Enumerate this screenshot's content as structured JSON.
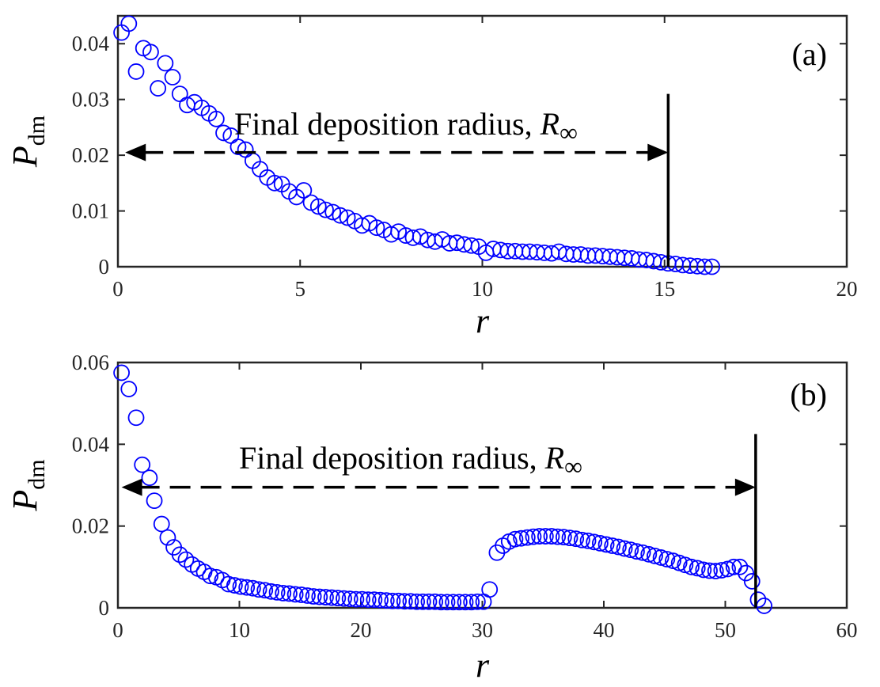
{
  "chart_data": [
    {
      "type": "scatter",
      "panel_label": "(a)",
      "xlabel": "r",
      "ylabel": "P",
      "ylabel_subscript": "dm",
      "xlim": [
        0,
        20
      ],
      "ylim": [
        0,
        0.045
      ],
      "xticks": [
        0,
        5,
        10,
        15,
        20
      ],
      "xtick_labels": [
        "0",
        "5",
        "10",
        "15",
        "20"
      ],
      "yticks": [
        0,
        0.01,
        0.02,
        0.03,
        0.04
      ],
      "ytick_labels": [
        "0",
        "0.01",
        "0.02",
        "0.03",
        "0.04"
      ],
      "marker": "open-circle",
      "color": "#0000ff",
      "annotation": {
        "text": "Final deposition radius, ",
        "symbol": "R",
        "symbol_subscript": "∞",
        "arrow_y": 0.0205,
        "arrow_from_x": 0.2,
        "arrow_to_x": 15.1,
        "vertical_line_x": 15.1,
        "vertical_line_y": [
          0,
          0.031
        ]
      },
      "series": [
        {
          "x": [
            0.1,
            0.3,
            0.5,
            0.7,
            0.9,
            1.1,
            1.3,
            1.5,
            1.7,
            1.9,
            2.1,
            2.3,
            2.5,
            2.7,
            2.9,
            3.1,
            3.3,
            3.5,
            3.7,
            3.9,
            4.1,
            4.3,
            4.5,
            4.7,
            4.9,
            5.1,
            5.3,
            5.5,
            5.7,
            5.9,
            6.1,
            6.3,
            6.5,
            6.7,
            6.9,
            7.1,
            7.3,
            7.5,
            7.7,
            7.9,
            8.1,
            8.3,
            8.5,
            8.7,
            8.9,
            9.1,
            9.3,
            9.5,
            9.7,
            9.9,
            10.1,
            10.3,
            10.5,
            10.7,
            10.9,
            11.1,
            11.3,
            11.5,
            11.7,
            11.9,
            12.1,
            12.3,
            12.5,
            12.7,
            12.9,
            13.1,
            13.3,
            13.5,
            13.7,
            13.9,
            14.1,
            14.3,
            14.5,
            14.7,
            14.9,
            15.1,
            15.3,
            15.5,
            15.7,
            15.9,
            16.1,
            16.3
          ],
          "y": [
            0.042,
            0.0436,
            0.035,
            0.0392,
            0.0385,
            0.032,
            0.0365,
            0.034,
            0.031,
            0.029,
            0.0295,
            0.0285,
            0.0275,
            0.0265,
            0.024,
            0.0235,
            0.0215,
            0.021,
            0.019,
            0.0175,
            0.016,
            0.015,
            0.0148,
            0.0135,
            0.0125,
            0.0137,
            0.0115,
            0.0108,
            0.0102,
            0.0098,
            0.0092,
            0.0088,
            0.0082,
            0.0074,
            0.0078,
            0.007,
            0.0066,
            0.0058,
            0.0063,
            0.0056,
            0.0052,
            0.0054,
            0.0048,
            0.0045,
            0.0049,
            0.0042,
            0.0043,
            0.004,
            0.0038,
            0.0036,
            0.0025,
            0.0032,
            0.003,
            0.0028,
            0.0028,
            0.0027,
            0.0027,
            0.0026,
            0.0025,
            0.0024,
            0.0027,
            0.0023,
            0.0022,
            0.0022,
            0.002,
            0.002,
            0.0019,
            0.0018,
            0.0017,
            0.0016,
            0.0015,
            0.0013,
            0.0012,
            0.001,
            0.0008,
            0.0006,
            0.0005,
            0.0003,
            0.0002,
            0.0001,
            0.0,
            0.0
          ]
        }
      ]
    },
    {
      "type": "scatter",
      "panel_label": "(b)",
      "xlabel": "r",
      "ylabel": "P",
      "ylabel_subscript": "dm",
      "xlim": [
        0,
        60
      ],
      "ylim": [
        0,
        0.06
      ],
      "xticks": [
        0,
        10,
        20,
        30,
        40,
        50,
        60
      ],
      "xtick_labels": [
        "0",
        "10",
        "20",
        "30",
        "40",
        "50",
        "60"
      ],
      "yticks": [
        0,
        0.02,
        0.04,
        0.06
      ],
      "ytick_labels": [
        "0",
        "0.02",
        "0.04",
        "0.06"
      ],
      "marker": "open-circle",
      "color": "#0000ff",
      "annotation": {
        "text": "Final deposition radius, ",
        "symbol": "R",
        "symbol_subscript": "∞",
        "arrow_y": 0.0295,
        "arrow_from_x": 0.3,
        "arrow_to_x": 52.5,
        "vertical_line_x": 52.5,
        "vertical_line_y": [
          0,
          0.0425
        ]
      },
      "series": [
        {
          "x": [
            0.3,
            0.9,
            1.5,
            2.0,
            2.6,
            3.0,
            3.6,
            4.1,
            4.6,
            5.1,
            5.6,
            6.1,
            6.6,
            7.1,
            7.6,
            8.1,
            8.6,
            9.1,
            9.6,
            10.1,
            10.6,
            11.1,
            11.6,
            12.1,
            12.6,
            13.1,
            13.6,
            14.1,
            14.6,
            15.1,
            15.6,
            16.1,
            16.6,
            17.1,
            17.6,
            18.1,
            18.6,
            19.1,
            19.6,
            20.1,
            20.6,
            21.1,
            21.6,
            22.1,
            22.6,
            23.1,
            23.6,
            24.1,
            24.6,
            25.1,
            25.6,
            26.1,
            26.6,
            27.1,
            27.6,
            28.1,
            28.6,
            29.1,
            29.6,
            30.1,
            30.6,
            31.2,
            31.7,
            32.2,
            32.7,
            33.2,
            33.7,
            34.2,
            34.7,
            35.2,
            35.7,
            36.2,
            36.7,
            37.2,
            37.7,
            38.2,
            38.7,
            39.2,
            39.7,
            40.2,
            40.7,
            41.2,
            41.7,
            42.2,
            42.7,
            43.2,
            43.7,
            44.2,
            44.7,
            45.2,
            45.7,
            46.2,
            46.7,
            47.2,
            47.7,
            48.2,
            48.7,
            49.2,
            49.7,
            50.2,
            50.7,
            51.2,
            51.7,
            52.2,
            52.7,
            53.2
          ],
          "y": [
            0.0575,
            0.0535,
            0.0465,
            0.035,
            0.0318,
            0.0262,
            0.0205,
            0.0172,
            0.0148,
            0.013,
            0.0118,
            0.0106,
            0.0096,
            0.0088,
            0.0078,
            0.0075,
            0.0068,
            0.0058,
            0.0055,
            0.0052,
            0.005,
            0.0048,
            0.0045,
            0.0043,
            0.004,
            0.0038,
            0.0036,
            0.0035,
            0.0033,
            0.0032,
            0.003,
            0.0028,
            0.0027,
            0.0026,
            0.0025,
            0.0024,
            0.0023,
            0.0022,
            0.0021,
            0.0021,
            0.002,
            0.002,
            0.0019,
            0.0018,
            0.0017,
            0.0017,
            0.0016,
            0.0016,
            0.0015,
            0.0015,
            0.0015,
            0.0015,
            0.0014,
            0.0014,
            0.0014,
            0.0014,
            0.0014,
            0.0014,
            0.0015,
            0.0015,
            0.0045,
            0.0135,
            0.0152,
            0.0162,
            0.0168,
            0.017,
            0.0172,
            0.0174,
            0.0175,
            0.0175,
            0.0175,
            0.0174,
            0.0173,
            0.0171,
            0.0169,
            0.0166,
            0.0164,
            0.0161,
            0.0158,
            0.0155,
            0.0152,
            0.0149,
            0.0145,
            0.0142,
            0.0138,
            0.0135,
            0.0131,
            0.0127,
            0.0123,
            0.0119,
            0.0115,
            0.011,
            0.0105,
            0.01,
            0.0097,
            0.0093,
            0.0091,
            0.009,
            0.0092,
            0.0095,
            0.01,
            0.01,
            0.0085,
            0.0065,
            0.002,
            0.0005
          ]
        }
      ]
    }
  ]
}
